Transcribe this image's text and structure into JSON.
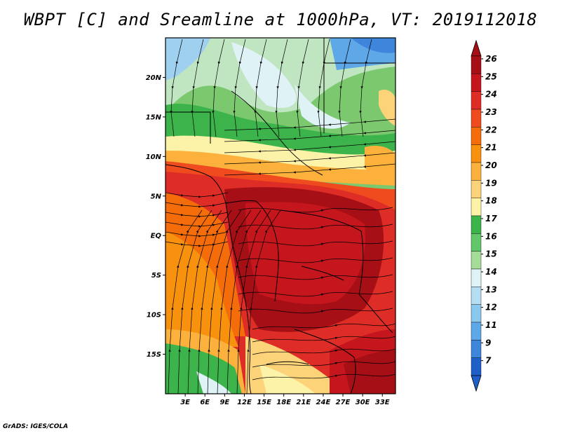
{
  "title": "WBPT [C] and Sreamline at 1000hPa, VT: 2019112018",
  "footer": "GrADS: IGES/COLA",
  "map": {
    "lat_labels": [
      "20N",
      "15N",
      "10N",
      "5N",
      "EQ",
      "5S",
      "10S",
      "15S"
    ],
    "lat_values": [
      20,
      15,
      10,
      5,
      0,
      -5,
      -10,
      -15
    ],
    "lon_labels": [
      "3E",
      "6E",
      "9E",
      "12E",
      "15E",
      "18E",
      "21E",
      "24E",
      "27E",
      "30E",
      "33E"
    ],
    "lon_values": [
      3,
      6,
      9,
      12,
      15,
      18,
      21,
      24,
      27,
      30,
      33
    ],
    "lon_range": [
      0,
      35
    ],
    "lat_range": [
      -20,
      25
    ]
  },
  "colorbar": {
    "labels": [
      "26",
      "25",
      "24",
      "23",
      "22",
      "21",
      "20",
      "19",
      "18",
      "17",
      "16",
      "15",
      "14",
      "13",
      "12",
      "11",
      "9",
      "7"
    ],
    "colors": [
      "#a50f15",
      "#c4161c",
      "#de2d26",
      "#ef4b1f",
      "#f46d0a",
      "#f8910e",
      "#fbb13c",
      "#fdd37a",
      "#fdf3a8",
      "#3cb44b",
      "#62c66a",
      "#a5dd98",
      "#dff2f6",
      "#b6def2",
      "#8cc8ee",
      "#5fa8e8",
      "#3d86dc",
      "#1f5fc8"
    ]
  },
  "legend_colors": {
    "coast": "#000000",
    "streamline": "#000000"
  }
}
